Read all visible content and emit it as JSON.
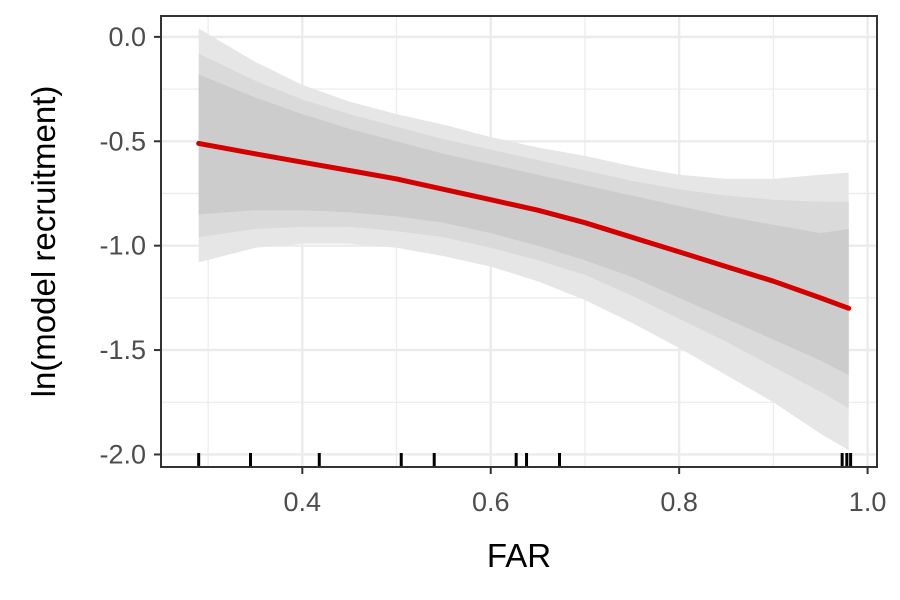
{
  "chart_data": {
    "type": "line",
    "title": "",
    "xlabel": "FAR",
    "ylabel": "ln(model recruitment)",
    "xlim": [
      0.25,
      1.01
    ],
    "ylim": [
      -2.06,
      0.1
    ],
    "x_ticks": [
      0.4,
      0.6,
      0.8,
      1.0
    ],
    "x_tick_labels": [
      "0.4",
      "0.6",
      "0.8",
      "1.0"
    ],
    "y_ticks": [
      0.0,
      -0.5,
      -1.0,
      -1.5,
      -2.0
    ],
    "y_tick_labels": [
      "0.0",
      "-0.5",
      "-1.0",
      "-1.5",
      "-2.0"
    ],
    "grid": true,
    "series": [
      {
        "x": [
          0.29,
          0.35,
          0.4,
          0.45,
          0.5,
          0.55,
          0.6,
          0.65,
          0.7,
          0.75,
          0.8,
          0.85,
          0.9,
          0.95,
          0.98
        ],
        "fit": [
          -0.51,
          -0.56,
          -0.6,
          -0.64,
          -0.68,
          -0.73,
          -0.78,
          -0.83,
          -0.89,
          -0.96,
          -1.03,
          -1.1,
          -1.17,
          -1.25,
          -1.3
        ],
        "band_outer_lower": [
          -1.08,
          -1.01,
          -0.99,
          -0.99,
          -1.01,
          -1.05,
          -1.1,
          -1.17,
          -1.26,
          -1.37,
          -1.49,
          -1.62,
          -1.75,
          -1.9,
          -1.98
        ],
        "band_outer_upper": [
          0.04,
          -0.12,
          -0.23,
          -0.31,
          -0.37,
          -0.42,
          -0.48,
          -0.53,
          -0.57,
          -0.62,
          -0.66,
          -0.68,
          -0.68,
          -0.66,
          -0.65
        ],
        "band_mid_lower": [
          -0.96,
          -0.92,
          -0.91,
          -0.91,
          -0.93,
          -0.96,
          -1.01,
          -1.07,
          -1.14,
          -1.24,
          -1.35,
          -1.46,
          -1.58,
          -1.7,
          -1.78
        ],
        "band_mid_upper": [
          -0.08,
          -0.21,
          -0.3,
          -0.37,
          -0.43,
          -0.49,
          -0.54,
          -0.59,
          -0.64,
          -0.69,
          -0.73,
          -0.76,
          -0.78,
          -0.79,
          -0.79
        ],
        "band_inner_lower": [
          -0.85,
          -0.83,
          -0.83,
          -0.84,
          -0.86,
          -0.89,
          -0.94,
          -1.0,
          -1.07,
          -1.15,
          -1.25,
          -1.35,
          -1.45,
          -1.55,
          -1.62
        ],
        "band_inner_upper": [
          -0.18,
          -0.29,
          -0.37,
          -0.44,
          -0.5,
          -0.56,
          -0.61,
          -0.66,
          -0.71,
          -0.76,
          -0.81,
          -0.86,
          -0.9,
          -0.94,
          -0.92
        ]
      }
    ],
    "rug_x": [
      0.29,
      0.345,
      0.418,
      0.505,
      0.54,
      0.627,
      0.638,
      0.673,
      0.973,
      0.978,
      0.982
    ],
    "colors": {
      "fit_line": "#d40000",
      "band_outer": "#e6e6e6",
      "band_mid": "#dadada",
      "band_inner": "#cccccc",
      "grid": "#ebebeb",
      "panel_border": "#333333",
      "rug": "#000000"
    }
  }
}
